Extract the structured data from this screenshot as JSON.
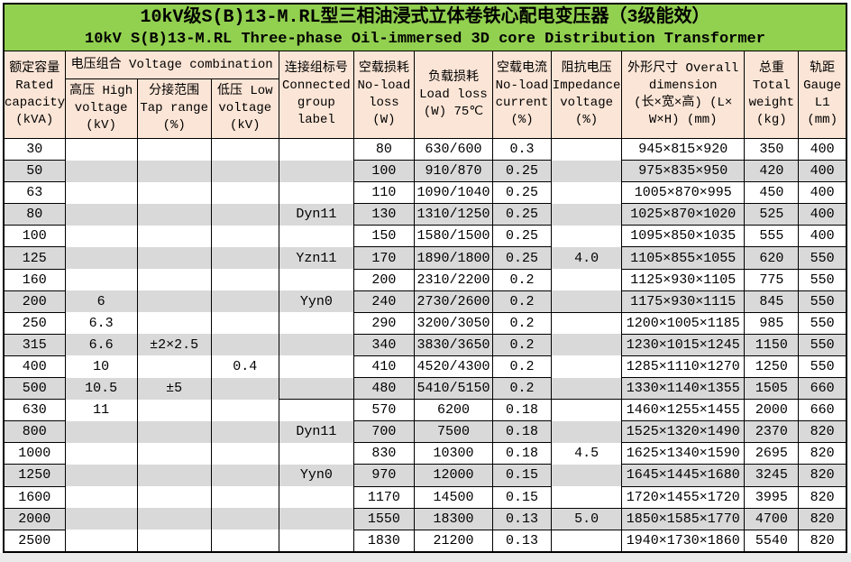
{
  "title": {
    "line1": "10kV级S(B)13-M.RL型三相油浸式立体卷铁心配电变压器（3级能效）",
    "line2": "10kV S(B)13-M.RL Three-phase Oil-immersed 3D core Distribution Transformer"
  },
  "voltage_group_label": "电压组合 Voltage combination",
  "columns": [
    {
      "id": "capacity",
      "label": "额定容量\nRated\ncapacity\n(kVA)"
    },
    {
      "id": "hv",
      "label": "高压 High\nvoltage\n(kV)"
    },
    {
      "id": "tap",
      "label": "分接范围\nTap range\n(%)"
    },
    {
      "id": "lv",
      "label": "低压 Low\nvoltage\n(kV)"
    },
    {
      "id": "group",
      "label": "连接组标号\nConnected\ngroup\nlabel"
    },
    {
      "id": "noload",
      "label": "空载损耗\nNo-load\nloss\n(W)"
    },
    {
      "id": "load",
      "label": "负载损耗\nLoad loss\n(W) 75℃"
    },
    {
      "id": "current",
      "label": "空载电流\nNo-load\ncurrent\n(%)"
    },
    {
      "id": "impedance",
      "label": "阻抗电压\nImpedance\nvoltage\n(%)"
    },
    {
      "id": "dimension",
      "label": "外形尺寸 Overall\ndimension\n(长×宽×高) (L×\nW×H) (mm)"
    },
    {
      "id": "weight",
      "label": "总重\nTotal\nweight\n(kg)"
    },
    {
      "id": "gauge",
      "label": "轨距\nGauge\nL1\n(mm)"
    }
  ],
  "rows": [
    [
      "30",
      "",
      "",
      "",
      "",
      "80",
      "630/600",
      "0.3",
      "",
      "945×815×920",
      "350",
      "400"
    ],
    [
      "50",
      "",
      "",
      "",
      "",
      "100",
      "910/870",
      "0.25",
      "",
      "975×835×950",
      "420",
      "400"
    ],
    [
      "63",
      "",
      "",
      "",
      "",
      "110",
      "1090/1040",
      "0.25",
      "",
      "1005×870×995",
      "450",
      "400"
    ],
    [
      "80",
      "",
      "",
      "",
      "Dyn11",
      "130",
      "1310/1250",
      "0.25",
      "",
      "1025×870×1020",
      "525",
      "400"
    ],
    [
      "100",
      "",
      "",
      "",
      "",
      "150",
      "1580/1500",
      "0.25",
      "",
      "1095×850×1035",
      "555",
      "400"
    ],
    [
      "125",
      "",
      "",
      "",
      "Yzn11",
      "170",
      "1890/1800",
      "0.25",
      "4.0",
      "1105×855×1055",
      "620",
      "550"
    ],
    [
      "160",
      "",
      "",
      "",
      "",
      "200",
      "2310/2200",
      "0.2",
      "",
      "1125×930×1105",
      "775",
      "550"
    ],
    [
      "200",
      "6",
      "",
      "",
      "Yyn0",
      "240",
      "2730/2600",
      "0.2",
      "",
      "1175×930×1115",
      "845",
      "550"
    ],
    [
      "250",
      "6.3",
      "",
      "",
      "",
      "290",
      "3200/3050",
      "0.2",
      "",
      "1200×1005×1185",
      "985",
      "550"
    ],
    [
      "315",
      "6.6",
      "±2×2.5",
      "",
      "",
      "340",
      "3830/3650",
      "0.2",
      "",
      "1230×1015×1245",
      "1150",
      "550"
    ],
    [
      "400",
      "10",
      "",
      "0.4",
      "",
      "410",
      "4520/4300",
      "0.2",
      "",
      "1285×1110×1270",
      "1250",
      "550"
    ],
    [
      "500",
      "10.5",
      "±5",
      "",
      "",
      "480",
      "5410/5150",
      "0.2",
      "",
      "1330×1140×1355",
      "1505",
      "660"
    ],
    [
      "630",
      "11",
      "",
      "",
      "",
      "570",
      "6200",
      "0.18",
      "",
      "1460×1255×1455",
      "2000",
      "660"
    ],
    [
      "800",
      "",
      "",
      "",
      "Dyn11",
      "700",
      "7500",
      "0.18",
      "",
      "1525×1320×1490",
      "2370",
      "820"
    ],
    [
      "1000",
      "",
      "",
      "",
      "",
      "830",
      "10300",
      "0.18",
      "4.5",
      "1625×1340×1590",
      "2695",
      "820"
    ],
    [
      "1250",
      "",
      "",
      "",
      "Yyn0",
      "970",
      "12000",
      "0.15",
      "",
      "1645×1445×1680",
      "3245",
      "820"
    ],
    [
      "1600",
      "",
      "",
      "",
      "",
      "1170",
      "14500",
      "0.15",
      "",
      "1720×1455×1720",
      "3995",
      "820"
    ],
    [
      "2000",
      "",
      "",
      "",
      "",
      "1550",
      "18300",
      "0.13",
      "5.0",
      "1850×1585×1770",
      "4700",
      "820"
    ],
    [
      "2500",
      "",
      "",
      "",
      "",
      "1830",
      "21200",
      "0.13",
      "",
      "1940×1730×1860",
      "5540",
      "820"
    ]
  ],
  "colors": {
    "title_bg": "#92D050",
    "header_bg": "#FBE5D6",
    "stripe_gray": "#D9D9D9",
    "border": "#000000"
  }
}
